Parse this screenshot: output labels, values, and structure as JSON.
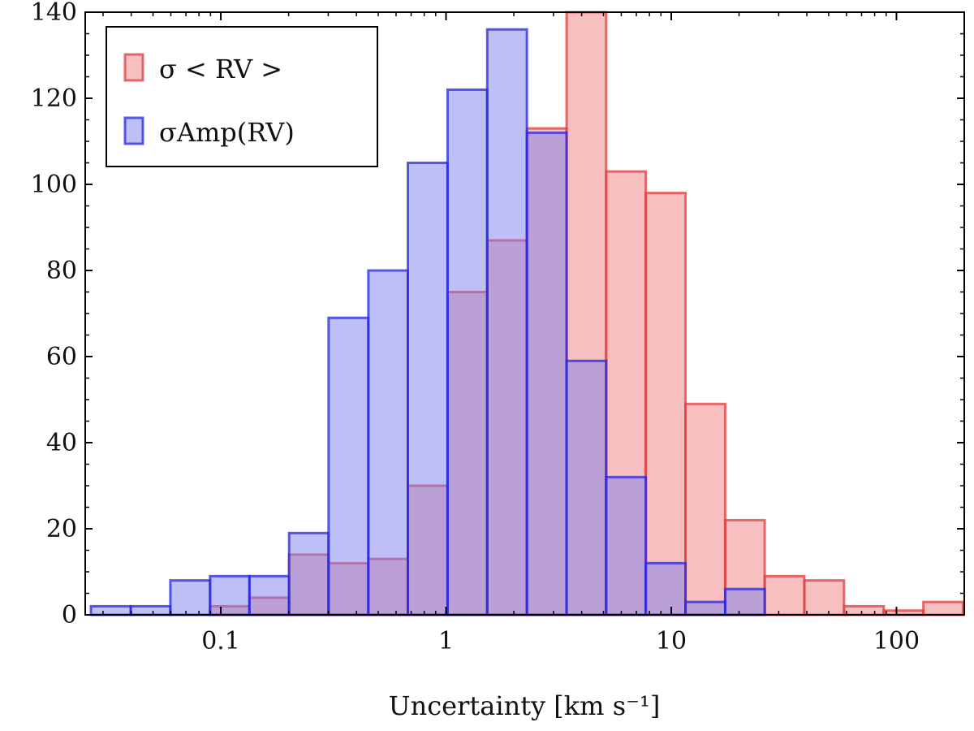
{
  "chart_data": {
    "type": "histogram",
    "x_scale": "log",
    "xlabel": "Uncertainty [km s⁻¹]",
    "ylabel": "",
    "xlim": [
      0.025,
      200
    ],
    "ylim": [
      0,
      140
    ],
    "x_tick_labels": [
      {
        "value": 0.1,
        "label": "0.1"
      },
      {
        "value": 1,
        "label": "1"
      },
      {
        "value": 10,
        "label": "10"
      },
      {
        "value": 100,
        "label": "100"
      }
    ],
    "y_tick_labels": [
      {
        "value": 0,
        "label": "0"
      },
      {
        "value": 20,
        "label": "20"
      },
      {
        "value": 40,
        "label": "40"
      },
      {
        "value": 60,
        "label": "60"
      },
      {
        "value": 80,
        "label": "80"
      },
      {
        "value": 100,
        "label": "100"
      },
      {
        "value": 120,
        "label": "120"
      },
      {
        "value": 140,
        "label": "140"
      }
    ],
    "bin_edges": [
      0.0265,
      0.0398,
      0.0597,
      0.0896,
      0.134,
      0.201,
      0.301,
      0.452,
      0.677,
      1.016,
      1.524,
      2.286,
      3.43,
      5.14,
      7.71,
      11.57,
      17.36,
      26.0,
      39.0,
      58.5,
      87.8,
      131.7,
      197.5
    ],
    "series": [
      {
        "name": "σ < RV >",
        "color": "#f08080",
        "edge_color": "#e03c3c",
        "counts": [
          0,
          0,
          0,
          2,
          4,
          14,
          12,
          13,
          30,
          75,
          87,
          113,
          140,
          103,
          98,
          49,
          22,
          9,
          8,
          2,
          1,
          3
        ]
      },
      {
        "name": "σAmp(RV)",
        "color": "#8080f0",
        "edge_color": "#2626e0",
        "counts": [
          2,
          2,
          8,
          9,
          9,
          19,
          69,
          80,
          105,
          122,
          136,
          112,
          59,
          32,
          12,
          3,
          6,
          0,
          0,
          0,
          0,
          0
        ]
      }
    ],
    "legend_location": "top-left"
  }
}
